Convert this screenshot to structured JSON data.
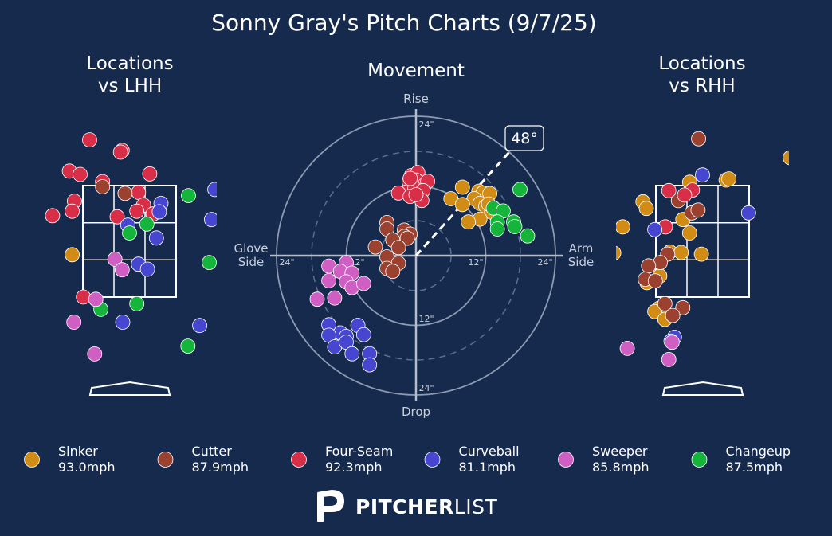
{
  "colors": {
    "background": "#162a4d",
    "Sinker": "#d08c14",
    "Cutter": "#9a4130",
    "Four-Seam": "#d92e48",
    "Curveball": "#4646d0",
    "Sweeper": "#d05fc4",
    "Changeup": "#15b43a"
  },
  "logo": {
    "icon": "pitcherlist-p-icon",
    "strong": "PITCHER",
    "light": "LIST"
  },
  "chart_data": [
    {
      "type": "scatter",
      "title": "Sonny Gray's Pitch Charts (9/7/25)",
      "subtitle": "Locations\nvs LHH",
      "zone": {
        "x": [
          -0.83,
          0.83
        ],
        "y": [
          1.5,
          3.5
        ]
      },
      "xlim": [
        -1.75,
        1.75
      ],
      "ylim": [
        0.3,
        4.6
      ],
      "points": [
        {
          "t": "Four-Seam",
          "x": -0.71,
          "y": 4.32
        },
        {
          "t": "Four-Seam",
          "x": -0.13,
          "y": 4.13
        },
        {
          "t": "Four-Seam",
          "x": -0.16,
          "y": 4.1
        },
        {
          "t": "Four-Seam",
          "x": -1.07,
          "y": 3.76
        },
        {
          "t": "Four-Seam",
          "x": -0.88,
          "y": 3.7
        },
        {
          "t": "Four-Seam",
          "x": 0.36,
          "y": 3.71
        },
        {
          "t": "Four-Seam",
          "x": -0.48,
          "y": 3.57
        },
        {
          "t": "Four-Seam",
          "x": 0.16,
          "y": 3.38
        },
        {
          "t": "Four-Seam",
          "x": -0.98,
          "y": 3.22
        },
        {
          "t": "Four-Seam",
          "x": -1.02,
          "y": 3.04
        },
        {
          "t": "Four-Seam",
          "x": -1.37,
          "y": 2.96
        },
        {
          "t": "Four-Seam",
          "x": -0.22,
          "y": 2.94
        },
        {
          "t": "Four-Seam",
          "x": 0.25,
          "y": 3.15
        },
        {
          "t": "Four-Seam",
          "x": 0.13,
          "y": 3.04
        },
        {
          "t": "Four-Seam",
          "x": 0.42,
          "y": 2.99
        },
        {
          "t": "Four-Seam",
          "x": -0.82,
          "y": 1.5
        },
        {
          "t": "Cutter",
          "x": -0.48,
          "y": 3.48
        },
        {
          "t": "Cutter",
          "x": -0.08,
          "y": 3.36
        },
        {
          "t": "Curveball",
          "x": 0.56,
          "y": 3.18
        },
        {
          "t": "Curveball",
          "x": 0.53,
          "y": 3.03
        },
        {
          "t": "Curveball",
          "x": 1.52,
          "y": 3.43
        },
        {
          "t": "Curveball",
          "x": 1.46,
          "y": 2.89
        },
        {
          "t": "Curveball",
          "x": -0.03,
          "y": 2.79
        },
        {
          "t": "Curveball",
          "x": 0.48,
          "y": 2.56
        },
        {
          "t": "Curveball",
          "x": 0.16,
          "y": 2.09
        },
        {
          "t": "Curveball",
          "x": 0.32,
          "y": 2.0
        },
        {
          "t": "Curveball",
          "x": -0.12,
          "y": 1.05
        },
        {
          "t": "Curveball",
          "x": 1.25,
          "y": 0.99
        },
        {
          "t": "Changeup",
          "x": 1.05,
          "y": 3.32
        },
        {
          "t": "Changeup",
          "x": 0.31,
          "y": 2.81
        },
        {
          "t": "Changeup",
          "x": 0.0,
          "y": 2.65
        },
        {
          "t": "Changeup",
          "x": 1.42,
          "y": 2.12
        },
        {
          "t": "Changeup",
          "x": 0.13,
          "y": 1.38
        },
        {
          "t": "Changeup",
          "x": -0.51,
          "y": 1.28
        },
        {
          "t": "Changeup",
          "x": 1.04,
          "y": 0.62
        },
        {
          "t": "Sinker",
          "x": -1.02,
          "y": 2.26
        },
        {
          "t": "Sweeper",
          "x": -0.26,
          "y": 2.18
        },
        {
          "t": "Sweeper",
          "x": -0.13,
          "y": 1.99
        },
        {
          "t": "Sweeper",
          "x": -0.6,
          "y": 1.46
        },
        {
          "t": "Sweeper",
          "x": -0.99,
          "y": 1.05
        },
        {
          "t": "Sweeper",
          "x": -0.62,
          "y": 0.48
        }
      ]
    },
    {
      "type": "scatter",
      "subtitle": "Movement",
      "axis_labels": {
        "top": "Rise",
        "bottom": "Drop",
        "left": "Glove\nSide",
        "right": "Arm\nSide"
      },
      "rings": [
        12,
        24
      ],
      "ring_labels": [
        "12\"",
        "24\""
      ],
      "arm_angle_label": "48°",
      "arm_angle": 48,
      "xlim": [
        -24,
        24
      ],
      "ylim": [
        -24,
        24
      ],
      "points": [
        {
          "t": "Four-Seam",
          "x": -0.8,
          "y": 13.8
        },
        {
          "t": "Four-Seam",
          "x": 0.3,
          "y": 14.3
        },
        {
          "t": "Four-Seam",
          "x": -1.2,
          "y": 12.8
        },
        {
          "t": "Four-Seam",
          "x": 0.0,
          "y": 13.0
        },
        {
          "t": "Four-Seam",
          "x": 1.5,
          "y": 12.2
        },
        {
          "t": "Four-Seam",
          "x": 2.0,
          "y": 12.8
        },
        {
          "t": "Four-Seam",
          "x": -1.5,
          "y": 11.0
        },
        {
          "t": "Four-Seam",
          "x": -0.2,
          "y": 11.5
        },
        {
          "t": "Four-Seam",
          "x": 1.2,
          "y": 11.2
        },
        {
          "t": "Four-Seam",
          "x": -3.0,
          "y": 10.8
        },
        {
          "t": "Four-Seam",
          "x": -1.0,
          "y": 10.2
        },
        {
          "t": "Four-Seam",
          "x": 1.0,
          "y": 9.5
        },
        {
          "t": "Four-Seam",
          "x": 0.0,
          "y": 10.5
        },
        {
          "t": "Four-Seam",
          "x": -1.0,
          "y": 13.3
        },
        {
          "t": "Sinker",
          "x": 8.0,
          "y": 11.8
        },
        {
          "t": "Sinker",
          "x": 6.0,
          "y": 9.8
        },
        {
          "t": "Sinker",
          "x": 10.8,
          "y": 11.1
        },
        {
          "t": "Sinker",
          "x": 11.5,
          "y": 10.8
        },
        {
          "t": "Sinker",
          "x": 12.7,
          "y": 10.7
        },
        {
          "t": "Sinker",
          "x": 10.0,
          "y": 9.8
        },
        {
          "t": "Sinker",
          "x": 11.0,
          "y": 9.0
        },
        {
          "t": "Sinker",
          "x": 8.0,
          "y": 8.8
        },
        {
          "t": "Sinker",
          "x": 12.0,
          "y": 8.5
        },
        {
          "t": "Sinker",
          "x": 13.0,
          "y": 7.5
        },
        {
          "t": "Sinker",
          "x": 11.0,
          "y": 6.3
        },
        {
          "t": "Sinker",
          "x": 9.0,
          "y": 5.8
        },
        {
          "t": "Sinker",
          "x": 12.5,
          "y": 8.9
        },
        {
          "t": "Changeup",
          "x": 17.9,
          "y": 11.4
        },
        {
          "t": "Changeup",
          "x": 13.3,
          "y": 8.2
        },
        {
          "t": "Changeup",
          "x": 15.0,
          "y": 7.7
        },
        {
          "t": "Changeup",
          "x": 14.0,
          "y": 5.8
        },
        {
          "t": "Changeup",
          "x": 16.8,
          "y": 5.8
        },
        {
          "t": "Changeup",
          "x": 17.0,
          "y": 5.0
        },
        {
          "t": "Changeup",
          "x": 19.2,
          "y": 3.4
        },
        {
          "t": "Changeup",
          "x": 14.0,
          "y": 4.6
        },
        {
          "t": "Cutter",
          "x": -5.0,
          "y": 5.7
        },
        {
          "t": "Cutter",
          "x": -5.0,
          "y": 4.6
        },
        {
          "t": "Cutter",
          "x": -2.0,
          "y": 4.4
        },
        {
          "t": "Cutter",
          "x": -1.0,
          "y": 3.7
        },
        {
          "t": "Cutter",
          "x": -2.0,
          "y": 3.3
        },
        {
          "t": "Cutter",
          "x": -4.0,
          "y": 2.7
        },
        {
          "t": "Cutter",
          "x": -1.5,
          "y": 3.0
        },
        {
          "t": "Cutter",
          "x": -3.0,
          "y": 1.4
        },
        {
          "t": "Cutter",
          "x": -7.0,
          "y": 1.5
        },
        {
          "t": "Cutter",
          "x": -5.0,
          "y": -0.2
        },
        {
          "t": "Cutter",
          "x": -3.0,
          "y": -1.3
        },
        {
          "t": "Cutter",
          "x": -5.0,
          "y": -2.2
        },
        {
          "t": "Cutter",
          "x": -4.0,
          "y": -2.7
        },
        {
          "t": "Sweeper",
          "x": -15.0,
          "y": -1.8
        },
        {
          "t": "Sweeper",
          "x": -12.0,
          "y": -1.2
        },
        {
          "t": "Sweeper",
          "x": -13.0,
          "y": -2.7
        },
        {
          "t": "Sweeper",
          "x": -11.0,
          "y": -3.0
        },
        {
          "t": "Sweeper",
          "x": -15.0,
          "y": -4.3
        },
        {
          "t": "Sweeper",
          "x": -12.0,
          "y": -4.5
        },
        {
          "t": "Sweeper",
          "x": -11.0,
          "y": -5.5
        },
        {
          "t": "Sweeper",
          "x": -9.0,
          "y": -4.8
        },
        {
          "t": "Sweeper",
          "x": -14.0,
          "y": -7.3
        },
        {
          "t": "Sweeper",
          "x": -17.0,
          "y": -7.5
        },
        {
          "t": "Curveball",
          "x": -15.0,
          "y": -11.9
        },
        {
          "t": "Curveball",
          "x": -10.0,
          "y": -12.0
        },
        {
          "t": "Curveball",
          "x": -13.0,
          "y": -13.3
        },
        {
          "t": "Curveball",
          "x": -15.0,
          "y": -13.7
        },
        {
          "t": "Curveball",
          "x": -12.0,
          "y": -13.9
        },
        {
          "t": "Curveball",
          "x": -9.0,
          "y": -13.6
        },
        {
          "t": "Curveball",
          "x": -14.0,
          "y": -15.7
        },
        {
          "t": "Curveball",
          "x": -12.0,
          "y": -14.9
        },
        {
          "t": "Curveball",
          "x": -11.0,
          "y": -16.9
        },
        {
          "t": "Curveball",
          "x": -8.0,
          "y": -16.9
        },
        {
          "t": "Curveball",
          "x": -8.0,
          "y": -18.8
        }
      ]
    },
    {
      "type": "scatter",
      "subtitle": "Locations\nvs RHH",
      "zone": {
        "x": [
          -0.83,
          0.83
        ],
        "y": [
          1.5,
          3.5
        ]
      },
      "xlim": [
        -1.75,
        1.75
      ],
      "ylim": [
        0.3,
        4.6
      ],
      "points": [
        {
          "t": "Cutter",
          "x": -0.07,
          "y": 4.34
        },
        {
          "t": "Sinker",
          "x": 1.56,
          "y": 4.0
        },
        {
          "t": "Sinker",
          "x": 0.42,
          "y": 3.6
        },
        {
          "t": "Sinker",
          "x": 0.47,
          "y": 3.62
        },
        {
          "t": "Sinker",
          "x": -0.23,
          "y": 3.56
        },
        {
          "t": "Sinker",
          "x": -1.06,
          "y": 3.21
        },
        {
          "t": "Sinker",
          "x": -1.42,
          "y": 2.76
        },
        {
          "t": "Sinker",
          "x": -1.0,
          "y": 3.09
        },
        {
          "t": "Sinker",
          "x": -0.35,
          "y": 2.89
        },
        {
          "t": "Sinker",
          "x": -0.23,
          "y": 2.65
        },
        {
          "t": "Sinker",
          "x": -0.02,
          "y": 2.27
        },
        {
          "t": "Sinker",
          "x": -0.58,
          "y": 2.31
        },
        {
          "t": "Sinker",
          "x": -0.38,
          "y": 2.3
        },
        {
          "t": "Sinker",
          "x": -0.76,
          "y": 1.88
        },
        {
          "t": "Sinker",
          "x": -0.99,
          "y": 1.76
        },
        {
          "t": "Sinker",
          "x": -0.77,
          "y": 1.3
        },
        {
          "t": "Sinker",
          "x": -0.85,
          "y": 1.24
        },
        {
          "t": "Sinker",
          "x": -0.67,
          "y": 1.1
        },
        {
          "t": "Sinker",
          "x": -1.58,
          "y": 2.29
        },
        {
          "t": "Cutter",
          "x": -0.43,
          "y": 3.23
        },
        {
          "t": "Cutter",
          "x": -0.19,
          "y": 3.01
        },
        {
          "t": "Cutter",
          "x": -0.08,
          "y": 3.06
        },
        {
          "t": "Cutter",
          "x": -0.62,
          "y": 2.27
        },
        {
          "t": "Cutter",
          "x": -0.75,
          "y": 2.12
        },
        {
          "t": "Cutter",
          "x": -0.96,
          "y": 2.06
        },
        {
          "t": "Cutter",
          "x": -1.02,
          "y": 1.82
        },
        {
          "t": "Cutter",
          "x": -0.84,
          "y": 1.79
        },
        {
          "t": "Cutter",
          "x": -0.67,
          "y": 1.38
        },
        {
          "t": "Cutter",
          "x": -0.35,
          "y": 1.31
        },
        {
          "t": "Cutter",
          "x": -0.53,
          "y": 1.17
        },
        {
          "t": "Four-Seam",
          "x": -0.6,
          "y": 3.41
        },
        {
          "t": "Four-Seam",
          "x": -0.18,
          "y": 3.42
        },
        {
          "t": "Four-Seam",
          "x": -0.32,
          "y": 3.33
        },
        {
          "t": "Four-Seam",
          "x": -0.66,
          "y": 2.76
        },
        {
          "t": "Curveball",
          "x": 0.0,
          "y": 3.69
        },
        {
          "t": "Curveball",
          "x": -0.85,
          "y": 2.71
        },
        {
          "t": "Curveball",
          "x": 0.82,
          "y": 3.01
        },
        {
          "t": "Curveball",
          "x": -0.5,
          "y": 0.78
        },
        {
          "t": "Curveball",
          "x": -0.56,
          "y": 0.71
        },
        {
          "t": "Sweeper",
          "x": -0.54,
          "y": 0.69
        },
        {
          "t": "Sweeper",
          "x": -1.34,
          "y": 0.58
        },
        {
          "t": "Sweeper",
          "x": -0.6,
          "y": 0.38
        }
      ]
    }
  ],
  "legend": [
    {
      "name": "Sinker",
      "speed": "93.0mph"
    },
    {
      "name": "Cutter",
      "speed": "87.9mph"
    },
    {
      "name": "Four-Seam",
      "speed": "92.3mph"
    },
    {
      "name": "Curveball",
      "speed": "81.1mph"
    },
    {
      "name": "Sweeper",
      "speed": "85.8mph"
    },
    {
      "name": "Changeup",
      "speed": "87.5mph"
    }
  ]
}
